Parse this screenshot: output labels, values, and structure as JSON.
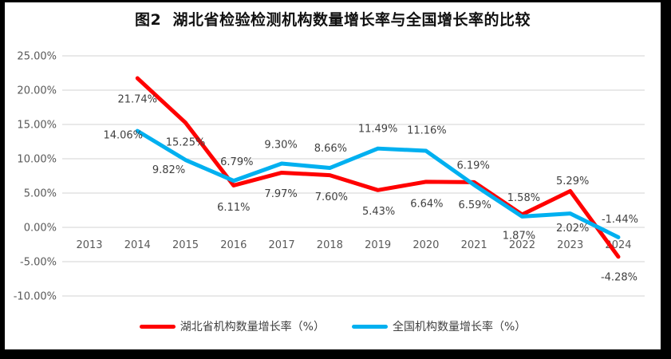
{
  "chart": {
    "title": "图2  湖北省检验检测机构数量增长率与全国增长率的比较"
  },
  "chart_data": {
    "type": "line",
    "title": "图2 湖北省检验检测机构数量增长率与全国增长率的比较",
    "categories": [
      "2013",
      "2014",
      "2015",
      "2016",
      "2017",
      "2018",
      "2019",
      "2020",
      "2021",
      "2022",
      "2023",
      "2024"
    ],
    "series": [
      {
        "name": "湖北省机构数量增长率（%）",
        "color": "#FF0000",
        "values": [
          null,
          21.74,
          15.25,
          6.11,
          7.97,
          7.6,
          5.43,
          6.64,
          6.59,
          1.87,
          5.29,
          -4.28
        ],
        "labels": [
          null,
          "21.74%",
          "15.25%",
          "6.11%",
          "7.97%",
          "7.60%",
          "5.43%",
          "6.64%",
          "6.59%",
          "1.87%",
          "5.29%",
          "-4.28%"
        ],
        "label_offsets": [
          null,
          [
            0,
            26
          ],
          [
            0,
            24
          ],
          [
            0,
            27
          ],
          [
            -1,
            26
          ],
          [
            2,
            27
          ],
          [
            1,
            26
          ],
          [
            1,
            27
          ],
          [
            1,
            28
          ],
          [
            -4,
            26
          ],
          [
            3,
            -13
          ],
          [
            1,
            25
          ]
        ]
      },
      {
        "name": "全国机构数量增长率（%）",
        "color": "#00B0F0",
        "values": [
          null,
          14.06,
          9.82,
          6.79,
          9.3,
          8.66,
          11.49,
          11.16,
          6.19,
          1.58,
          2.02,
          -1.44
        ],
        "labels": [
          null,
          "14.06%",
          "9.82%",
          "6.79%",
          "9.30%",
          "8.66%",
          "11.49%",
          "11.16%",
          "6.19%",
          "1.58%",
          "2.02%",
          "-1.44%"
        ],
        "label_offsets": [
          null,
          [
            -18,
            5
          ],
          [
            -21,
            12
          ],
          [
            4,
            -24
          ],
          [
            -1,
            -24
          ],
          [
            1,
            -25
          ],
          [
            0,
            -25
          ],
          [
            1,
            -26
          ],
          [
            -1,
            -25
          ],
          [
            2,
            -24
          ],
          [
            3,
            18
          ],
          [
            2,
            -23
          ]
        ]
      }
    ],
    "y_axis": {
      "tick_labels": [
        "25.00%",
        "20.00%",
        "15.00%",
        "10.00%",
        "5.00%",
        "0.00%",
        "-5.00%",
        "-10.00%"
      ],
      "max": 25,
      "min": -10,
      "step": 5
    },
    "grid": true,
    "legend_position": "bottom",
    "colors": {
      "grid": "#DCDCDC",
      "axis_text": "#595959",
      "data_label_text": "#404040"
    }
  }
}
